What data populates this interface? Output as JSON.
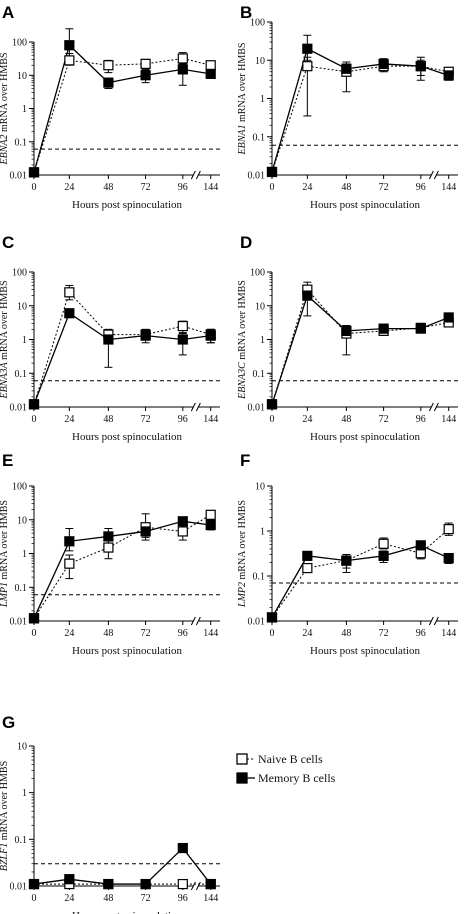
{
  "x_tick_labels": [
    "0",
    "24",
    "48",
    "72",
    "96",
    "144"
  ],
  "legend": {
    "naive": "Naive B cells",
    "memory": "Memory B cells"
  },
  "chart_data": [
    {
      "panel": "A",
      "type": "line",
      "ylabel_gene": "EBNA2",
      "ylabel_rest": " mRNA over HMBS",
      "xlabel": "Hours post spinoculation",
      "y_scale": "log",
      "y_ticks": [
        "0.01",
        "0.1",
        "1",
        "10",
        "100"
      ],
      "ylim": [
        0.01,
        100
      ],
      "detection_limit": 0.06,
      "x": [
        0,
        24,
        48,
        72,
        96,
        144
      ],
      "series": [
        {
          "name": "Naive B cells",
          "values": [
            0.012,
            28,
            20,
            22,
            32,
            20
          ],
          "err_low": [
            0.012,
            20,
            12,
            15,
            22,
            14
          ],
          "err_high": [
            0.012,
            45,
            28,
            30,
            48,
            25
          ]
        },
        {
          "name": "Memory B cells",
          "values": [
            0.012,
            80,
            6,
            10,
            15,
            11
          ],
          "err_low": [
            0.012,
            30,
            4,
            6,
            5,
            9
          ],
          "err_high": [
            0.012,
            250,
            8,
            14,
            22,
            14
          ]
        }
      ]
    },
    {
      "panel": "B",
      "type": "line",
      "ylabel_gene": "EBNA1",
      "ylabel_rest": " mRNA over HMBS",
      "xlabel": "Hours post spinoculation",
      "y_scale": "log",
      "y_ticks": [
        "0.01",
        "0.1",
        "1",
        "10",
        "100"
      ],
      "ylim": [
        0.01,
        100
      ],
      "detection_limit": 0.06,
      "x": [
        0,
        24,
        48,
        72,
        96,
        144
      ],
      "series": [
        {
          "name": "Naive B cells",
          "values": [
            0.012,
            7,
            5,
            7,
            7,
            5
          ],
          "err_low": [
            0.012,
            0.35,
            1.5,
            5,
            4,
            4
          ],
          "err_high": [
            0.012,
            12,
            8,
            10,
            12,
            6
          ]
        },
        {
          "name": "Memory B cells",
          "values": [
            0.012,
            20,
            6,
            8,
            7,
            4
          ],
          "err_low": [
            0.012,
            10,
            4,
            6,
            3,
            3
          ],
          "err_high": [
            0.012,
            45,
            9,
            11,
            10,
            5
          ]
        }
      ]
    },
    {
      "panel": "C",
      "type": "line",
      "ylabel_gene": "EBNA3A",
      "ylabel_rest": " mRNA over HMBS",
      "xlabel": "Hours post spinoculation",
      "y_scale": "log",
      "y_ticks": [
        "0.01",
        "0.1",
        "1",
        "10",
        "100"
      ],
      "ylim": [
        0.01,
        100
      ],
      "detection_limit": 0.06,
      "x": [
        0,
        24,
        48,
        72,
        96,
        144
      ],
      "series": [
        {
          "name": "Naive B cells",
          "values": [
            0.012,
            25,
            1.4,
            1.4,
            2.5,
            1.4
          ],
          "err_low": [
            0.012,
            15,
            0.9,
            1,
            1.5,
            0.8
          ],
          "err_high": [
            0.012,
            40,
            2,
            2,
            3.5,
            2
          ]
        },
        {
          "name": "Memory B cells",
          "values": [
            0.012,
            6,
            1,
            1.3,
            1,
            1.3
          ],
          "err_low": [
            0.012,
            5,
            0.15,
            0.8,
            0.35,
            0.8
          ],
          "err_high": [
            0.012,
            8,
            1.6,
            1.8,
            1.6,
            2
          ]
        }
      ]
    },
    {
      "panel": "D",
      "type": "line",
      "ylabel_gene": "EBNA3C",
      "ylabel_rest": " mRNA over HMBS",
      "xlabel": "Hours post spinoculation",
      "y_scale": "log",
      "y_ticks": [
        "0.01",
        "0.1",
        "1",
        "10",
        "100"
      ],
      "ylim": [
        0.01,
        100
      ],
      "detection_limit": 0.06,
      "x": [
        0,
        24,
        48,
        72,
        96,
        144
      ],
      "series": [
        {
          "name": "Naive B cells",
          "values": [
            0.012,
            30,
            1.5,
            1.8,
            2.2,
            3.2
          ],
          "err_low": [
            0.012,
            20,
            0.35,
            1.4,
            1.7,
            2.5
          ],
          "err_high": [
            0.012,
            50,
            2.6,
            2.4,
            3,
            4.5
          ]
        },
        {
          "name": "Memory B cells",
          "values": [
            0.012,
            20,
            1.8,
            2.1,
            2.1,
            4.5
          ],
          "err_low": [
            0.012,
            5,
            1.2,
            1.7,
            1.6,
            3.5
          ],
          "err_high": [
            0.012,
            30,
            2.6,
            2.6,
            2.8,
            6
          ]
        }
      ]
    },
    {
      "panel": "E",
      "type": "line",
      "ylabel_gene": "LMP1",
      "ylabel_rest": " mRNA over HMBS",
      "xlabel": "Hours post spinoculation",
      "y_scale": "log",
      "y_ticks": [
        "0.01",
        "0.1",
        "1",
        "10",
        "100"
      ],
      "ylim": [
        0.01,
        100
      ],
      "detection_limit": 0.06,
      "x": [
        0,
        24,
        48,
        72,
        96,
        144
      ],
      "series": [
        {
          "name": "Naive B cells",
          "values": [
            0.012,
            0.5,
            1.5,
            6,
            4.5,
            14
          ],
          "err_low": [
            0.012,
            0.18,
            0.7,
            3,
            2.5,
            10
          ],
          "err_high": [
            0.012,
            0.9,
            3,
            15,
            8,
            18
          ]
        },
        {
          "name": "Memory B cells",
          "values": [
            0.012,
            2.3,
            3.2,
            4.5,
            9,
            7
          ],
          "err_low": [
            0.012,
            1.2,
            2,
            2.5,
            6,
            5
          ],
          "err_high": [
            0.012,
            5.5,
            5.5,
            7.5,
            12,
            9
          ]
        }
      ]
    },
    {
      "panel": "F",
      "type": "line",
      "ylabel_gene": "LMP2",
      "ylabel_rest": " mRNA over HMBS",
      "xlabel": "Hours post spinoculation",
      "y_scale": "log",
      "y_ticks": [
        "0.01",
        "0.1",
        "1",
        "10"
      ],
      "ylim": [
        0.01,
        10
      ],
      "detection_limit": 0.07,
      "x": [
        0,
        24,
        48,
        72,
        96,
        144
      ],
      "series": [
        {
          "name": "Naive B cells",
          "values": [
            0.012,
            0.15,
            0.22,
            0.52,
            0.32,
            1.1
          ],
          "err_low": [
            0.012,
            0.12,
            0.15,
            0.4,
            0.24,
            0.8
          ],
          "err_high": [
            0.012,
            0.18,
            0.3,
            0.7,
            0.42,
            1.5
          ]
        },
        {
          "name": "Memory B cells",
          "values": [
            0.012,
            0.28,
            0.22,
            0.28,
            0.48,
            0.25
          ],
          "err_low": [
            0.012,
            0.25,
            0.12,
            0.2,
            0.38,
            0.19
          ],
          "err_high": [
            0.012,
            0.3,
            0.3,
            0.36,
            0.6,
            0.31
          ]
        }
      ]
    },
    {
      "panel": "G",
      "type": "line",
      "ylabel_gene": "BZLF1",
      "ylabel_rest": " mRNA over HMBS",
      "xlabel": "Hours post spinoculation",
      "y_scale": "log",
      "y_ticks": [
        "0.01",
        "0.1",
        "1",
        "10"
      ],
      "ylim": [
        0.01,
        10
      ],
      "detection_limit": 0.03,
      "x": [
        0,
        24,
        48,
        72,
        96,
        144
      ],
      "series": [
        {
          "name": "Naive B cells",
          "values": [
            0.011,
            0.011,
            0.011,
            0.011,
            0.011,
            0.011
          ],
          "err_low": [
            0.011,
            0.011,
            0.011,
            0.011,
            0.011,
            0.011
          ],
          "err_high": [
            0.011,
            0.011,
            0.011,
            0.011,
            0.011,
            0.011
          ]
        },
        {
          "name": "Memory B cells",
          "values": [
            0.011,
            0.014,
            0.011,
            0.011,
            0.065,
            0.011
          ],
          "err_low": [
            0.011,
            0.012,
            0.011,
            0.011,
            0.055,
            0.011
          ],
          "err_high": [
            0.011,
            0.016,
            0.011,
            0.011,
            0.075,
            0.011
          ]
        }
      ]
    }
  ]
}
